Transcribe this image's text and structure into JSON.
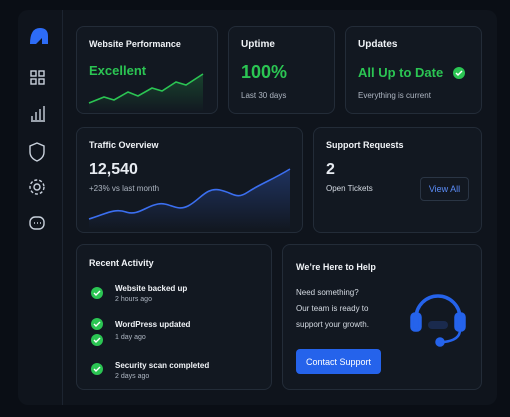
{
  "cards": {
    "performance": {
      "title": "Website Performance",
      "status": "Excellent"
    },
    "uptime": {
      "title": "Uptime",
      "value": "100%",
      "note": "Last 30 days"
    },
    "updates": {
      "title": "Updates",
      "status": "All Up to Date",
      "note": "Everything is current"
    },
    "traffic": {
      "title": "Traffic Overview",
      "value": "12,540",
      "note": "+23% vs last month"
    },
    "support": {
      "title": "Support Requests",
      "value": "2",
      "note": "Open Tickets",
      "button": "View All"
    },
    "activity": {
      "title": "Recent Activity",
      "items": [
        {
          "label": "Website backed up",
          "time": "2 hours ago"
        },
        {
          "label": "WordPress updated",
          "time": "1 day ago"
        },
        {
          "label": "Security scan completed",
          "time": "2 days ago"
        }
      ]
    },
    "help": {
      "title": "We’re Here to Help",
      "lines": [
        "Need something?",
        "Our team is ready to",
        "support your growth."
      ],
      "button": "Contact Support"
    }
  }
}
